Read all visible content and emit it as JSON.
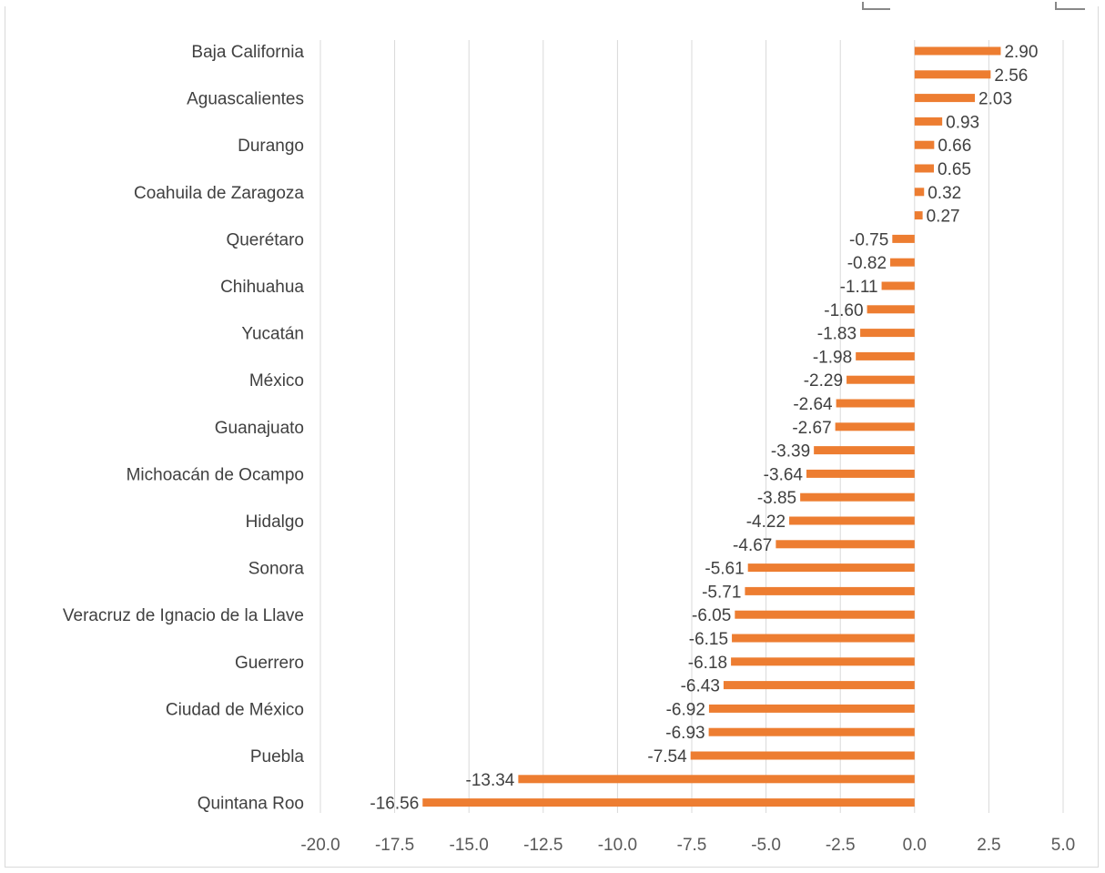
{
  "chart_data": {
    "type": "bar",
    "orientation": "horizontal",
    "title": "",
    "xlabel": "",
    "ylabel": "",
    "xlim": [
      -20.0,
      5.0
    ],
    "x_ticks": [
      "-20.0",
      "-17.5",
      "-15.0",
      "-12.5",
      "-10.0",
      "-7.5",
      "-5.0",
      "-2.5",
      "0.0",
      "2.5",
      "5.0"
    ],
    "x_tick_values": [
      -20.0,
      -17.5,
      -15.0,
      -12.5,
      -10.0,
      -7.5,
      -5.0,
      -2.5,
      0.0,
      2.5,
      5.0
    ],
    "grid": true,
    "legend": "none",
    "bar_color": "#ed7d31",
    "categories": [
      "Baja California",
      "",
      "Aguascalientes",
      "",
      "Durango",
      "",
      "Coahuila de Zaragoza",
      "",
      "Querétaro",
      "",
      "Chihuahua",
      "",
      "Yucatán",
      "",
      "México",
      "",
      "Guanajuato",
      "",
      "Michoacán de Ocampo",
      "",
      "Hidalgo",
      "",
      "Sonora",
      "",
      "Veracruz de Ignacio de la Llave",
      "",
      "Guerrero",
      "",
      "Ciudad de México",
      "",
      "Puebla",
      "",
      "Quintana Roo"
    ],
    "values": [
      2.9,
      2.56,
      2.03,
      0.93,
      0.66,
      0.65,
      0.32,
      0.27,
      -0.75,
      -0.82,
      -1.11,
      -1.6,
      -1.83,
      -1.98,
      -2.29,
      -2.64,
      -2.67,
      -3.39,
      -3.64,
      -3.85,
      -4.22,
      -4.67,
      -5.61,
      -5.71,
      -6.05,
      -6.15,
      -6.18,
      -6.43,
      -6.92,
      -6.93,
      -7.54,
      -13.34,
      -16.56
    ],
    "value_labels": [
      "2.90",
      "2.56",
      "2.03",
      "0.93",
      "0.66",
      "0.65",
      "0.32",
      "0.27",
      "-0.75",
      "-0.82",
      "-1.11",
      "-1.60",
      "-1.83",
      "-1.98",
      "-2.29",
      "-2.64",
      "-2.67",
      "-3.39",
      "-3.64",
      "-3.85",
      "-4.22",
      "-4.67",
      "-5.61",
      "-5.71",
      "-6.05",
      "-6.15",
      "-6.18",
      "-6.43",
      "-6.92",
      "-6.93",
      "-7.54",
      "-13.34",
      "-16.56"
    ]
  }
}
